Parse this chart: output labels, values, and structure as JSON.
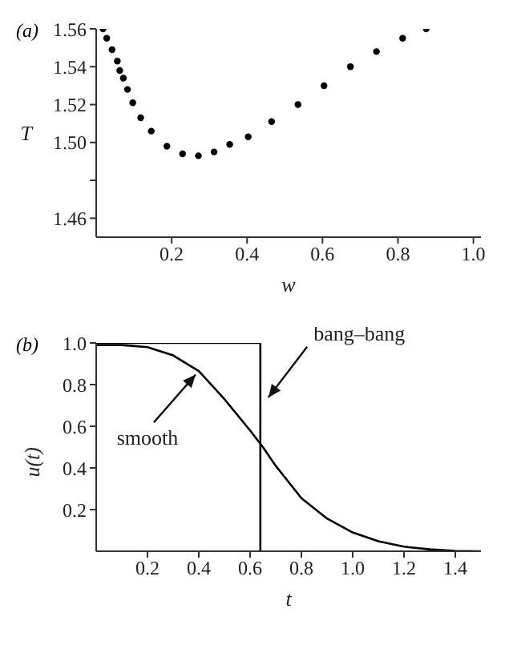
{
  "chart_data": [
    {
      "type": "scatter",
      "title": "(a)",
      "xlabel": "w",
      "ylabel": "T",
      "marker": "circle",
      "series": [
        {
          "color": "#000000",
          "x": [
            0.018,
            0.028,
            0.042,
            0.056,
            0.0625,
            0.072,
            0.083,
            0.097,
            0.118,
            0.146,
            0.1875,
            0.229,
            0.271,
            0.3125,
            0.354,
            0.403,
            0.465,
            0.535,
            0.604,
            0.674,
            0.743,
            0.8125,
            0.875
          ],
          "values": [
            1.56,
            1.555,
            1.549,
            1.543,
            1.538,
            1.534,
            1.528,
            1.521,
            1.513,
            1.506,
            1.498,
            1.494,
            1.493,
            1.495,
            1.499,
            1.503,
            1.511,
            1.52,
            1.53,
            1.54,
            1.548,
            1.555,
            1.56
          ]
        }
      ],
      "xlim": [
        0,
        1.02
      ],
      "xticks": [
        {
          "value": 0.2,
          "label": "0.2"
        },
        {
          "value": 0.4,
          "label": "0.4"
        },
        {
          "value": 0.6,
          "label": "0.6"
        },
        {
          "value": 0.8,
          "label": "0.8"
        },
        {
          "value": 1,
          "label": "1.0"
        }
      ],
      "ylim": [
        1.45,
        1.56
      ],
      "yticks": [
        {
          "value": 1.46,
          "label": "1.46"
        },
        {
          "value": 1.48,
          "label": null
        },
        {
          "value": 1.5,
          "label": "1.50"
        },
        {
          "value": 1.52,
          "label": "1.52"
        },
        {
          "value": 1.54,
          "label": "1.54"
        },
        {
          "value": 1.56,
          "label": "1.56"
        }
      ]
    },
    {
      "type": "line",
      "title": "(b)",
      "xlabel": "t",
      "ylabel": "u(t)",
      "marker": "none",
      "line_style": "solid",
      "series": [
        {
          "color": "#000000",
          "x": [
            0,
            0.1,
            0.2,
            0.3,
            0.4,
            0.5,
            0.6,
            0.65,
            0.7,
            0.8,
            0.9,
            1.0,
            1.1,
            1.2,
            1.3,
            1.4,
            1.5
          ],
          "values": [
            0.99,
            0.99,
            0.98,
            0.94,
            0.865,
            0.73,
            0.58,
            0.5,
            0.41,
            0.255,
            0.157,
            0.09,
            0.048,
            0.022,
            0.009,
            0.002,
            0
          ]
        },
        {
          "color": "#000000",
          "x": [
            0,
            0.64,
            0.64
          ],
          "values": [
            1,
            1,
            0
          ]
        }
      ],
      "annotations": [
        {
          "text": "smooth",
          "x": 0.4,
          "y": 0.865
        },
        {
          "text": "bang–bang",
          "x": 0.66,
          "y": 0.72
        }
      ],
      "xlim": [
        0,
        1.5
      ],
      "xticks": [
        {
          "value": 0.2,
          "label": "0.2"
        },
        {
          "value": 0.4,
          "label": "0.4"
        },
        {
          "value": 0.6,
          "label": "0.6"
        },
        {
          "value": 0.8,
          "label": "0.8"
        },
        {
          "value": 1,
          "label": "1.0"
        },
        {
          "value": 1.2,
          "label": "1.2"
        },
        {
          "value": 1.4,
          "label": "1.4"
        }
      ],
      "ylim": [
        0,
        1
      ],
      "yticks": [
        {
          "value": 0.2,
          "label": "0.2"
        },
        {
          "value": 0.4,
          "label": "0.4"
        },
        {
          "value": 0.6,
          "label": "0.6"
        },
        {
          "value": 0.8,
          "label": "0.8"
        },
        {
          "value": 1,
          "label": "1.0"
        }
      ]
    }
  ]
}
